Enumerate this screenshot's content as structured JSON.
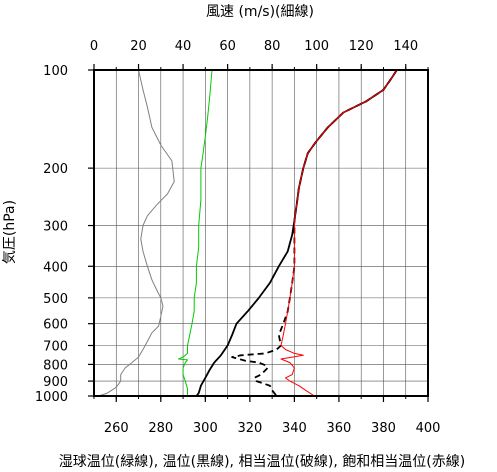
{
  "chart_data": {
    "type": "line",
    "title": "",
    "top_axis": {
      "label": "風速 (m/s)(細線)",
      "range": [
        0,
        150
      ],
      "ticks": [
        0,
        20,
        40,
        60,
        80,
        100,
        120,
        140
      ]
    },
    "bottom_axis": {
      "label": "湿球温位(緑線), 温位(黒線), 相当温位(破線), 飽和相当温位(赤線)",
      "range": [
        250,
        400
      ],
      "ticks": [
        260,
        280,
        300,
        320,
        340,
        360,
        380,
        400
      ]
    },
    "y_axis": {
      "label": "気圧(hPa)",
      "scale": "log",
      "range": [
        1000,
        100
      ],
      "ticks": [
        100,
        200,
        300,
        400,
        500,
        600,
        700,
        800,
        900,
        1000
      ]
    },
    "grid": true,
    "series": [
      {
        "axis": "top",
        "color": "#808080",
        "points": [
          [
            20,
            100
          ],
          [
            22,
            115
          ],
          [
            24,
            130
          ],
          [
            26,
            150
          ],
          [
            30,
            170
          ],
          [
            35,
            190
          ],
          [
            36,
            220
          ],
          [
            33,
            240
          ],
          [
            28,
            260
          ],
          [
            24,
            280
          ],
          [
            22,
            300
          ],
          [
            21,
            330
          ],
          [
            22,
            360
          ],
          [
            24,
            400
          ],
          [
            26,
            440
          ],
          [
            28,
            470
          ],
          [
            30,
            500
          ],
          [
            31,
            530
          ],
          [
            30,
            570
          ],
          [
            29,
            610
          ],
          [
            26,
            640
          ],
          [
            24,
            680
          ],
          [
            22,
            720
          ],
          [
            20,
            760
          ],
          [
            17,
            790
          ],
          [
            14,
            820
          ],
          [
            12,
            860
          ],
          [
            12,
            900
          ],
          [
            10,
            940
          ],
          [
            6,
            980
          ],
          [
            2,
            1000
          ]
        ]
      },
      {
        "axis": "bottom",
        "color": "#00cc00",
        "points": [
          [
            303,
            100
          ],
          [
            302,
            120
          ],
          [
            301,
            140
          ],
          [
            300,
            160
          ],
          [
            299,
            180
          ],
          [
            298,
            200
          ],
          [
            298,
            250
          ],
          [
            297,
            300
          ],
          [
            297,
            350
          ],
          [
            296,
            400
          ],
          [
            296,
            450
          ],
          [
            295,
            500
          ],
          [
            295,
            550
          ],
          [
            294,
            600
          ],
          [
            293,
            650
          ],
          [
            292,
            700
          ],
          [
            292,
            740
          ],
          [
            290,
            760
          ],
          [
            288,
            770
          ],
          [
            292,
            775
          ],
          [
            291,
            790
          ],
          [
            290,
            820
          ],
          [
            290,
            860
          ],
          [
            291,
            900
          ],
          [
            292,
            950
          ],
          [
            292,
            1000
          ]
        ]
      },
      {
        "axis": "bottom",
        "color": "#000000",
        "points": [
          [
            386,
            100
          ],
          [
            384,
            105
          ],
          [
            380,
            115
          ],
          [
            372,
            125
          ],
          [
            362,
            135
          ],
          [
            355,
            150
          ],
          [
            350,
            165
          ],
          [
            346,
            180
          ],
          [
            344,
            200
          ],
          [
            342,
            230
          ],
          [
            341,
            260
          ],
          [
            340,
            290
          ],
          [
            339,
            320
          ],
          [
            337,
            360
          ],
          [
            333,
            400
          ],
          [
            329,
            450
          ],
          [
            324,
            500
          ],
          [
            319,
            550
          ],
          [
            314,
            600
          ],
          [
            312,
            650
          ],
          [
            310,
            700
          ],
          [
            307,
            750
          ],
          [
            304,
            790
          ],
          [
            302,
            830
          ],
          [
            300,
            880
          ],
          [
            298,
            930
          ],
          [
            297,
            980
          ],
          [
            296,
            1000
          ]
        ]
      },
      {
        "axis": "bottom",
        "color": "#000000",
        "dashed": true,
        "points": [
          [
            386,
            100
          ],
          [
            384,
            105
          ],
          [
            380,
            115
          ],
          [
            372,
            125
          ],
          [
            362,
            135
          ],
          [
            355,
            150
          ],
          [
            350,
            165
          ],
          [
            346,
            180
          ],
          [
            344,
            200
          ],
          [
            342,
            230
          ],
          [
            341,
            260
          ],
          [
            340,
            290
          ],
          [
            340,
            320
          ],
          [
            340,
            360
          ],
          [
            340,
            400
          ],
          [
            339,
            450
          ],
          [
            338,
            500
          ],
          [
            337,
            550
          ],
          [
            335,
            600
          ],
          [
            333,
            650
          ],
          [
            334,
            700
          ],
          [
            332,
            720
          ],
          [
            327,
            740
          ],
          [
            316,
            750
          ],
          [
            312,
            760
          ],
          [
            318,
            780
          ],
          [
            324,
            790
          ],
          [
            327,
            805
          ],
          [
            328,
            820
          ],
          [
            325,
            860
          ],
          [
            322,
            880
          ],
          [
            323,
            900
          ],
          [
            329,
            930
          ],
          [
            330,
            960
          ],
          [
            332,
            1000
          ]
        ]
      },
      {
        "axis": "bottom",
        "color": "#ff0000",
        "points": [
          [
            386,
            100
          ],
          [
            384,
            105
          ],
          [
            380,
            115
          ],
          [
            372,
            125
          ],
          [
            362,
            135
          ],
          [
            355,
            150
          ],
          [
            350,
            165
          ],
          [
            346,
            180
          ],
          [
            344,
            200
          ],
          [
            342,
            230
          ],
          [
            341,
            260
          ],
          [
            340,
            290
          ],
          [
            340,
            320
          ],
          [
            340,
            360
          ],
          [
            340,
            400
          ],
          [
            339,
            450
          ],
          [
            338,
            500
          ],
          [
            337,
            550
          ],
          [
            336,
            600
          ],
          [
            335,
            650
          ],
          [
            334,
            700
          ],
          [
            336,
            720
          ],
          [
            340,
            740
          ],
          [
            344,
            750
          ],
          [
            339,
            760
          ],
          [
            334,
            770
          ],
          [
            338,
            790
          ],
          [
            340,
            820
          ],
          [
            339,
            860
          ],
          [
            336,
            880
          ],
          [
            338,
            900
          ],
          [
            342,
            930
          ],
          [
            345,
            960
          ],
          [
            349,
            1000
          ]
        ]
      }
    ]
  }
}
